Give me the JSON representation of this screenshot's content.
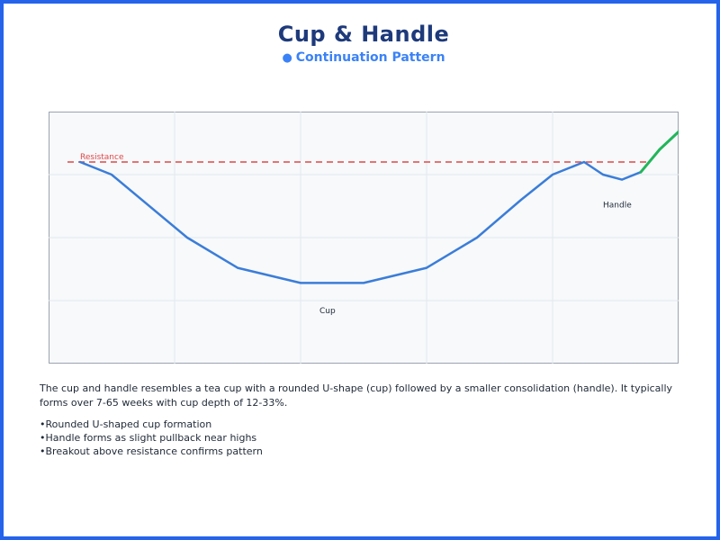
{
  "title": "Cup & Handle",
  "subtitle": "Continuation Pattern",
  "colors": {
    "border": "#2563eb",
    "title": "#1e3a7b",
    "subtitle": "#3b82f6",
    "price_line": "#3b7dd8",
    "breakout_line": "#22b55a",
    "resistance_line": "#e04848"
  },
  "chart_data": {
    "type": "line",
    "title": "",
    "xlabel": "",
    "ylabel": "",
    "xlim": [
      0,
      100
    ],
    "ylim": [
      0,
      100
    ],
    "grid": true,
    "series": [
      {
        "x": [
          5,
          10,
          22,
          30,
          40,
          50,
          60,
          68,
          75,
          80,
          85,
          88,
          91,
          94
        ],
        "y": [
          80,
          75,
          50,
          38,
          32,
          32,
          38,
          50,
          65,
          75,
          80,
          75,
          73,
          76
        ]
      },
      {
        "x": [
          94,
          97,
          100
        ],
        "y": [
          76,
          85,
          92
        ]
      }
    ],
    "reference_lines": [
      {
        "label": "Resistance",
        "y": 80,
        "x_start": 3,
        "x_end": 95,
        "style": "dashed"
      }
    ],
    "annotations": [
      {
        "text": "Cup",
        "x": 43,
        "y": 20
      },
      {
        "text": "Handle",
        "x": 88,
        "y": 62
      }
    ]
  },
  "description": "The cup and handle resembles a tea cup with a rounded U-shape (cup) followed by a smaller consolidation (handle). It typically forms over 7-65 weeks with cup depth of 12-33%.",
  "bullets": [
    "Rounded U-shaped cup formation",
    "Handle forms as slight pullback near highs",
    "Breakout above resistance confirms pattern"
  ]
}
